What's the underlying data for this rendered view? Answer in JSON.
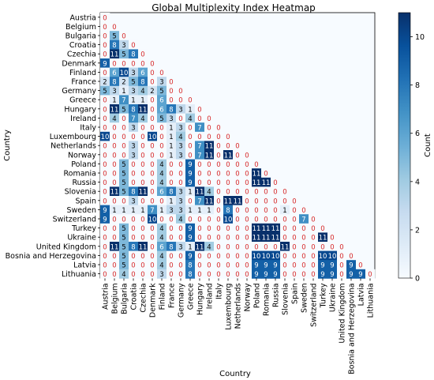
{
  "chart_data": {
    "type": "heatmap",
    "title": "Global Multiplexity Index Heatmap",
    "xlabel": "Country",
    "ylabel": "Country",
    "colorbar": {
      "label": "Count",
      "min": 0,
      "max": 11,
      "ticks": [
        0,
        2,
        4,
        6,
        8,
        10
      ],
      "colormap": "Blues"
    },
    "zero_color": "#d62728",
    "categories": [
      "Austria",
      "Belgium",
      "Bulgaria",
      "Croatia",
      "Czechia",
      "Denmark",
      "Finland",
      "France",
      "Germany",
      "Greece",
      "Hungary",
      "Ireland",
      "Italy",
      "Luxembourg",
      "Netherlands",
      "Norway",
      "Poland",
      "Romania",
      "Russia",
      "Slovenia",
      "Spain",
      "Sweden",
      "Switzerland",
      "Turkey",
      "Ukraine",
      "United Kingdom",
      "Bosnia and Herzegovina",
      "Latvia",
      "Lithuania"
    ],
    "matrix": [
      [
        0
      ],
      [
        0,
        0
      ],
      [
        0,
        5,
        0
      ],
      [
        0,
        8,
        3,
        0
      ],
      [
        0,
        11,
        5,
        8,
        0
      ],
      [
        9,
        0,
        0,
        0,
        0,
        0
      ],
      [
        0,
        6,
        10,
        3,
        6,
        0,
        0
      ],
      [
        2,
        8,
        2,
        5,
        8,
        0,
        3,
        0
      ],
      [
        5,
        3,
        1,
        3,
        4,
        2,
        5,
        0,
        0
      ],
      [
        0,
        1,
        7,
        1,
        1,
        0,
        6,
        0,
        0,
        0
      ],
      [
        0,
        11,
        5,
        8,
        11,
        0,
        6,
        8,
        3,
        1,
        0
      ],
      [
        0,
        4,
        0,
        7,
        4,
        0,
        5,
        3,
        0,
        4,
        0,
        0
      ],
      [
        0,
        0,
        0,
        3,
        0,
        0,
        0,
        1,
        3,
        0,
        7,
        0,
        0
      ],
      [
        10,
        0,
        0,
        0,
        0,
        10,
        0,
        1,
        4,
        0,
        0,
        0,
        0,
        0
      ],
      [
        0,
        0,
        0,
        3,
        0,
        0,
        0,
        1,
        3,
        0,
        7,
        11,
        0,
        0,
        0
      ],
      [
        0,
        0,
        0,
        3,
        0,
        0,
        0,
        1,
        3,
        0,
        7,
        11,
        0,
        11,
        0,
        0
      ],
      [
        0,
        0,
        5,
        0,
        0,
        0,
        4,
        0,
        0,
        9,
        0,
        0,
        0,
        0,
        0,
        0,
        0
      ],
      [
        0,
        0,
        5,
        0,
        0,
        0,
        4,
        0,
        0,
        9,
        0,
        0,
        0,
        0,
        0,
        0,
        11,
        0
      ],
      [
        0,
        0,
        5,
        0,
        0,
        0,
        4,
        0,
        0,
        9,
        0,
        0,
        0,
        0,
        0,
        0,
        11,
        11,
        0
      ],
      [
        0,
        11,
        5,
        8,
        11,
        0,
        6,
        8,
        3,
        1,
        11,
        4,
        0,
        0,
        0,
        0,
        0,
        0,
        0,
        0
      ],
      [
        0,
        0,
        0,
        3,
        0,
        0,
        0,
        1,
        3,
        0,
        7,
        11,
        0,
        11,
        11,
        0,
        0,
        0,
        0,
        0,
        0
      ],
      [
        9,
        1,
        1,
        1,
        1,
        7,
        1,
        3,
        3,
        1,
        1,
        1,
        0,
        8,
        0,
        0,
        0,
        0,
        0,
        1,
        0,
        0
      ],
      [
        9,
        0,
        0,
        0,
        0,
        10,
        0,
        0,
        4,
        0,
        0,
        0,
        0,
        10,
        0,
        0,
        0,
        0,
        0,
        0,
        0,
        7,
        0
      ],
      [
        0,
        0,
        5,
        0,
        0,
        0,
        4,
        0,
        0,
        9,
        0,
        0,
        0,
        0,
        0,
        0,
        11,
        11,
        11,
        0,
        0,
        0,
        0,
        0
      ],
      [
        0,
        0,
        5,
        0,
        0,
        0,
        4,
        0,
        0,
        9,
        0,
        0,
        0,
        0,
        0,
        0,
        11,
        11,
        11,
        0,
        0,
        0,
        0,
        11,
        0
      ],
      [
        0,
        11,
        5,
        8,
        11,
        0,
        6,
        8,
        3,
        1,
        11,
        4,
        0,
        0,
        0,
        0,
        0,
        0,
        0,
        11,
        0,
        0,
        0,
        0,
        0,
        0
      ],
      [
        0,
        0,
        5,
        0,
        0,
        0,
        4,
        0,
        0,
        9,
        0,
        0,
        0,
        0,
        0,
        0,
        10,
        10,
        10,
        0,
        0,
        0,
        0,
        10,
        10,
        0,
        0
      ],
      [
        0,
        0,
        5,
        0,
        0,
        0,
        4,
        0,
        0,
        8,
        0,
        0,
        0,
        0,
        0,
        0,
        9,
        9,
        9,
        0,
        0,
        0,
        0,
        9,
        9,
        0,
        9,
        0
      ],
      [
        0,
        0,
        4,
        0,
        0,
        0,
        3,
        0,
        0,
        8,
        0,
        0,
        0,
        0,
        0,
        0,
        9,
        9,
        9,
        0,
        0,
        0,
        0,
        9,
        9,
        0,
        9,
        9,
        0
      ]
    ]
  }
}
